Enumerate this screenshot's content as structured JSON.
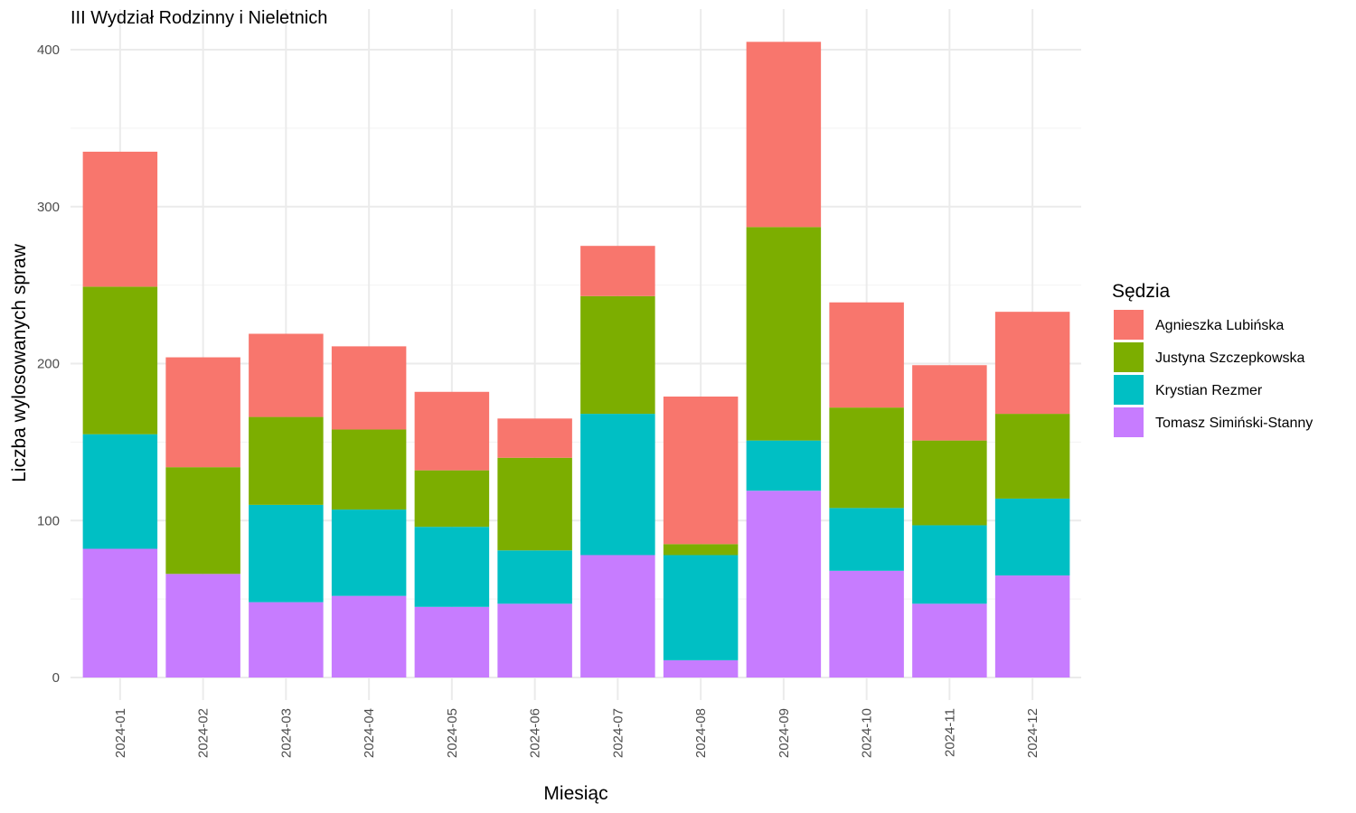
{
  "chart_data": {
    "type": "bar",
    "stacked": true,
    "title": "III Wydział Rodzinny i Nieletnich",
    "xlabel": "Miesiąc",
    "ylabel": "Liczba wylosowanych spraw",
    "ylim": [
      0,
      405
    ],
    "yticks": [
      0,
      100,
      200,
      300,
      400
    ],
    "grid": true,
    "legend_position": "right",
    "legend_title": "Sędzia",
    "categories": [
      "2024-01",
      "2024-02",
      "2024-03",
      "2024-04",
      "2024-05",
      "2024-06",
      "2024-07",
      "2024-08",
      "2024-09",
      "2024-10",
      "2024-11",
      "2024-12"
    ],
    "series": [
      {
        "name": "Tomasz Simiński-Stanny",
        "color": "#C77CFF",
        "values": [
          82,
          66,
          48,
          52,
          45,
          47,
          78,
          11,
          119,
          68,
          47,
          65
        ]
      },
      {
        "name": "Krystian Rezmer",
        "color": "#00BFC4",
        "values": [
          73,
          0,
          62,
          55,
          51,
          34,
          90,
          67,
          32,
          40,
          50,
          49
        ]
      },
      {
        "name": "Justyna Szczepkowska",
        "color": "#7CAE00",
        "values": [
          94,
          68,
          56,
          51,
          36,
          59,
          75,
          7,
          136,
          64,
          54,
          54
        ]
      },
      {
        "name": "Agnieszka Lubińska",
        "color": "#F8766D",
        "values": [
          86,
          70,
          53,
          53,
          50,
          25,
          32,
          94,
          118,
          67,
          48,
          65
        ]
      }
    ],
    "legend_order": [
      "Agnieszka Lubińska",
      "Justyna Szczepkowska",
      "Krystian Rezmer",
      "Tomasz Simiński-Stanny"
    ]
  }
}
